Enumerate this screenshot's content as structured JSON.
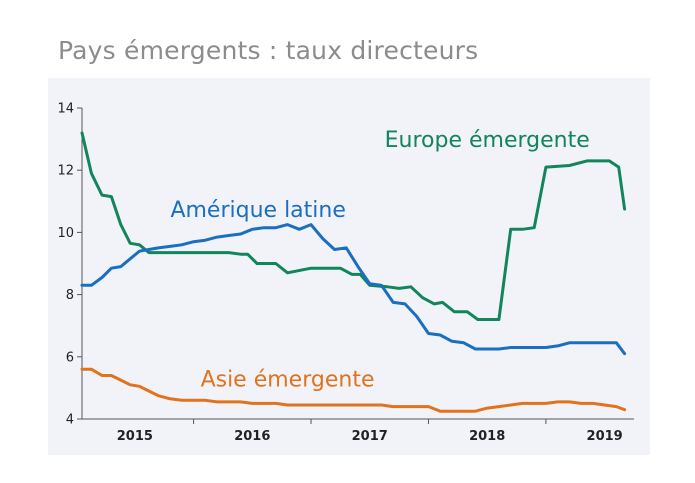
{
  "chart_data": {
    "type": "line",
    "title": "Pays émergents : taux directeurs",
    "xlabel": "",
    "ylabel": "",
    "ylim": [
      4,
      14
    ],
    "yticks": [
      4,
      6,
      8,
      10,
      12,
      14
    ],
    "xlim": [
      2014.55,
      2019.25
    ],
    "year_labels": [
      {
        "label": "2015",
        "x": 2015.0
      },
      {
        "label": "2016",
        "x": 2016.0
      },
      {
        "label": "2017",
        "x": 2017.0
      },
      {
        "label": "2018",
        "x": 2018.0
      },
      {
        "label": "2019",
        "x": 2019.0
      }
    ],
    "year_separators": [
      2015.5,
      2016.5,
      2017.5,
      2018.5
    ],
    "grid": false,
    "series": [
      {
        "name": "Europe émergente",
        "color": "#12855a",
        "label_anchor": [
          2018.0,
          12.75
        ],
        "x": [
          2014.55,
          2014.63,
          2014.72,
          2014.8,
          2014.88,
          2014.96,
          2015.04,
          2015.12,
          2015.2,
          2015.4,
          2015.6,
          2015.8,
          2015.9,
          2015.96,
          2016.04,
          2016.12,
          2016.2,
          2016.3,
          2016.5,
          2016.62,
          2016.75,
          2016.85,
          2016.92,
          2017.0,
          2017.15,
          2017.25,
          2017.35,
          2017.45,
          2017.55,
          2017.62,
          2017.72,
          2017.83,
          2017.92,
          2018.0,
          2018.1,
          2018.2,
          2018.3,
          2018.4,
          2018.5,
          2018.7,
          2018.85,
          2018.96,
          2019.04,
          2019.12,
          2019.17
        ],
        "values": [
          13.2,
          11.9,
          11.2,
          11.15,
          10.25,
          9.65,
          9.6,
          9.35,
          9.35,
          9.35,
          9.35,
          9.35,
          9.3,
          9.3,
          9.0,
          9.0,
          9.0,
          8.7,
          8.85,
          8.85,
          8.85,
          8.65,
          8.65,
          8.3,
          8.25,
          8.2,
          8.25,
          7.9,
          7.7,
          7.75,
          7.45,
          7.45,
          7.2,
          7.2,
          7.2,
          10.1,
          10.1,
          10.15,
          12.1,
          12.15,
          12.3,
          12.3,
          12.3,
          12.1,
          10.75
        ]
      },
      {
        "name": "Amérique latine",
        "color": "#1a6fc1",
        "label_anchor": [
          2016.05,
          10.5
        ],
        "x": [
          2014.55,
          2014.63,
          2014.72,
          2014.8,
          2014.88,
          2014.96,
          2015.04,
          2015.12,
          2015.2,
          2015.3,
          2015.4,
          2015.5,
          2015.6,
          2015.7,
          2015.8,
          2015.9,
          2016.0,
          2016.1,
          2016.2,
          2016.3,
          2016.4,
          2016.5,
          2016.6,
          2016.7,
          2016.8,
          2016.9,
          2017.0,
          2017.1,
          2017.2,
          2017.3,
          2017.4,
          2017.5,
          2017.6,
          2017.7,
          2017.8,
          2017.9,
          2018.0,
          2018.1,
          2018.2,
          2018.3,
          2018.4,
          2018.5,
          2018.6,
          2018.7,
          2018.8,
          2018.9,
          2019.0,
          2019.1,
          2019.17
        ],
        "values": [
          8.3,
          8.3,
          8.55,
          8.85,
          8.9,
          9.15,
          9.4,
          9.45,
          9.5,
          9.55,
          9.6,
          9.7,
          9.75,
          9.85,
          9.9,
          9.95,
          10.1,
          10.15,
          10.15,
          10.25,
          10.1,
          10.25,
          9.8,
          9.45,
          9.5,
          8.9,
          8.35,
          8.3,
          7.75,
          7.7,
          7.3,
          6.75,
          6.7,
          6.5,
          6.45,
          6.25,
          6.25,
          6.25,
          6.3,
          6.3,
          6.3,
          6.3,
          6.35,
          6.45,
          6.45,
          6.45,
          6.45,
          6.45,
          6.1
        ]
      },
      {
        "name": "Asie émergente",
        "color": "#e0731c",
        "label_anchor": [
          2016.3,
          5.05
        ],
        "x": [
          2014.55,
          2014.63,
          2014.72,
          2014.8,
          2014.88,
          2014.96,
          2015.04,
          2015.12,
          2015.2,
          2015.3,
          2015.4,
          2015.5,
          2015.6,
          2015.7,
          2015.8,
          2015.9,
          2016.0,
          2016.1,
          2016.2,
          2016.3,
          2016.4,
          2016.5,
          2016.6,
          2016.7,
          2016.8,
          2016.9,
          2017.0,
          2017.1,
          2017.2,
          2017.3,
          2017.4,
          2017.5,
          2017.6,
          2017.7,
          2017.8,
          2017.9,
          2018.0,
          2018.1,
          2018.2,
          2018.3,
          2018.4,
          2018.5,
          2018.6,
          2018.7,
          2018.8,
          2018.9,
          2019.0,
          2019.1,
          2019.17
        ],
        "values": [
          5.6,
          5.6,
          5.4,
          5.4,
          5.25,
          5.1,
          5.05,
          4.9,
          4.75,
          4.65,
          4.6,
          4.6,
          4.6,
          4.55,
          4.55,
          4.55,
          4.5,
          4.5,
          4.5,
          4.45,
          4.45,
          4.45,
          4.45,
          4.45,
          4.45,
          4.45,
          4.45,
          4.45,
          4.4,
          4.4,
          4.4,
          4.4,
          4.25,
          4.25,
          4.25,
          4.25,
          4.35,
          4.4,
          4.45,
          4.5,
          4.5,
          4.5,
          4.55,
          4.55,
          4.5,
          4.5,
          4.45,
          4.4,
          4.3
        ]
      }
    ]
  }
}
